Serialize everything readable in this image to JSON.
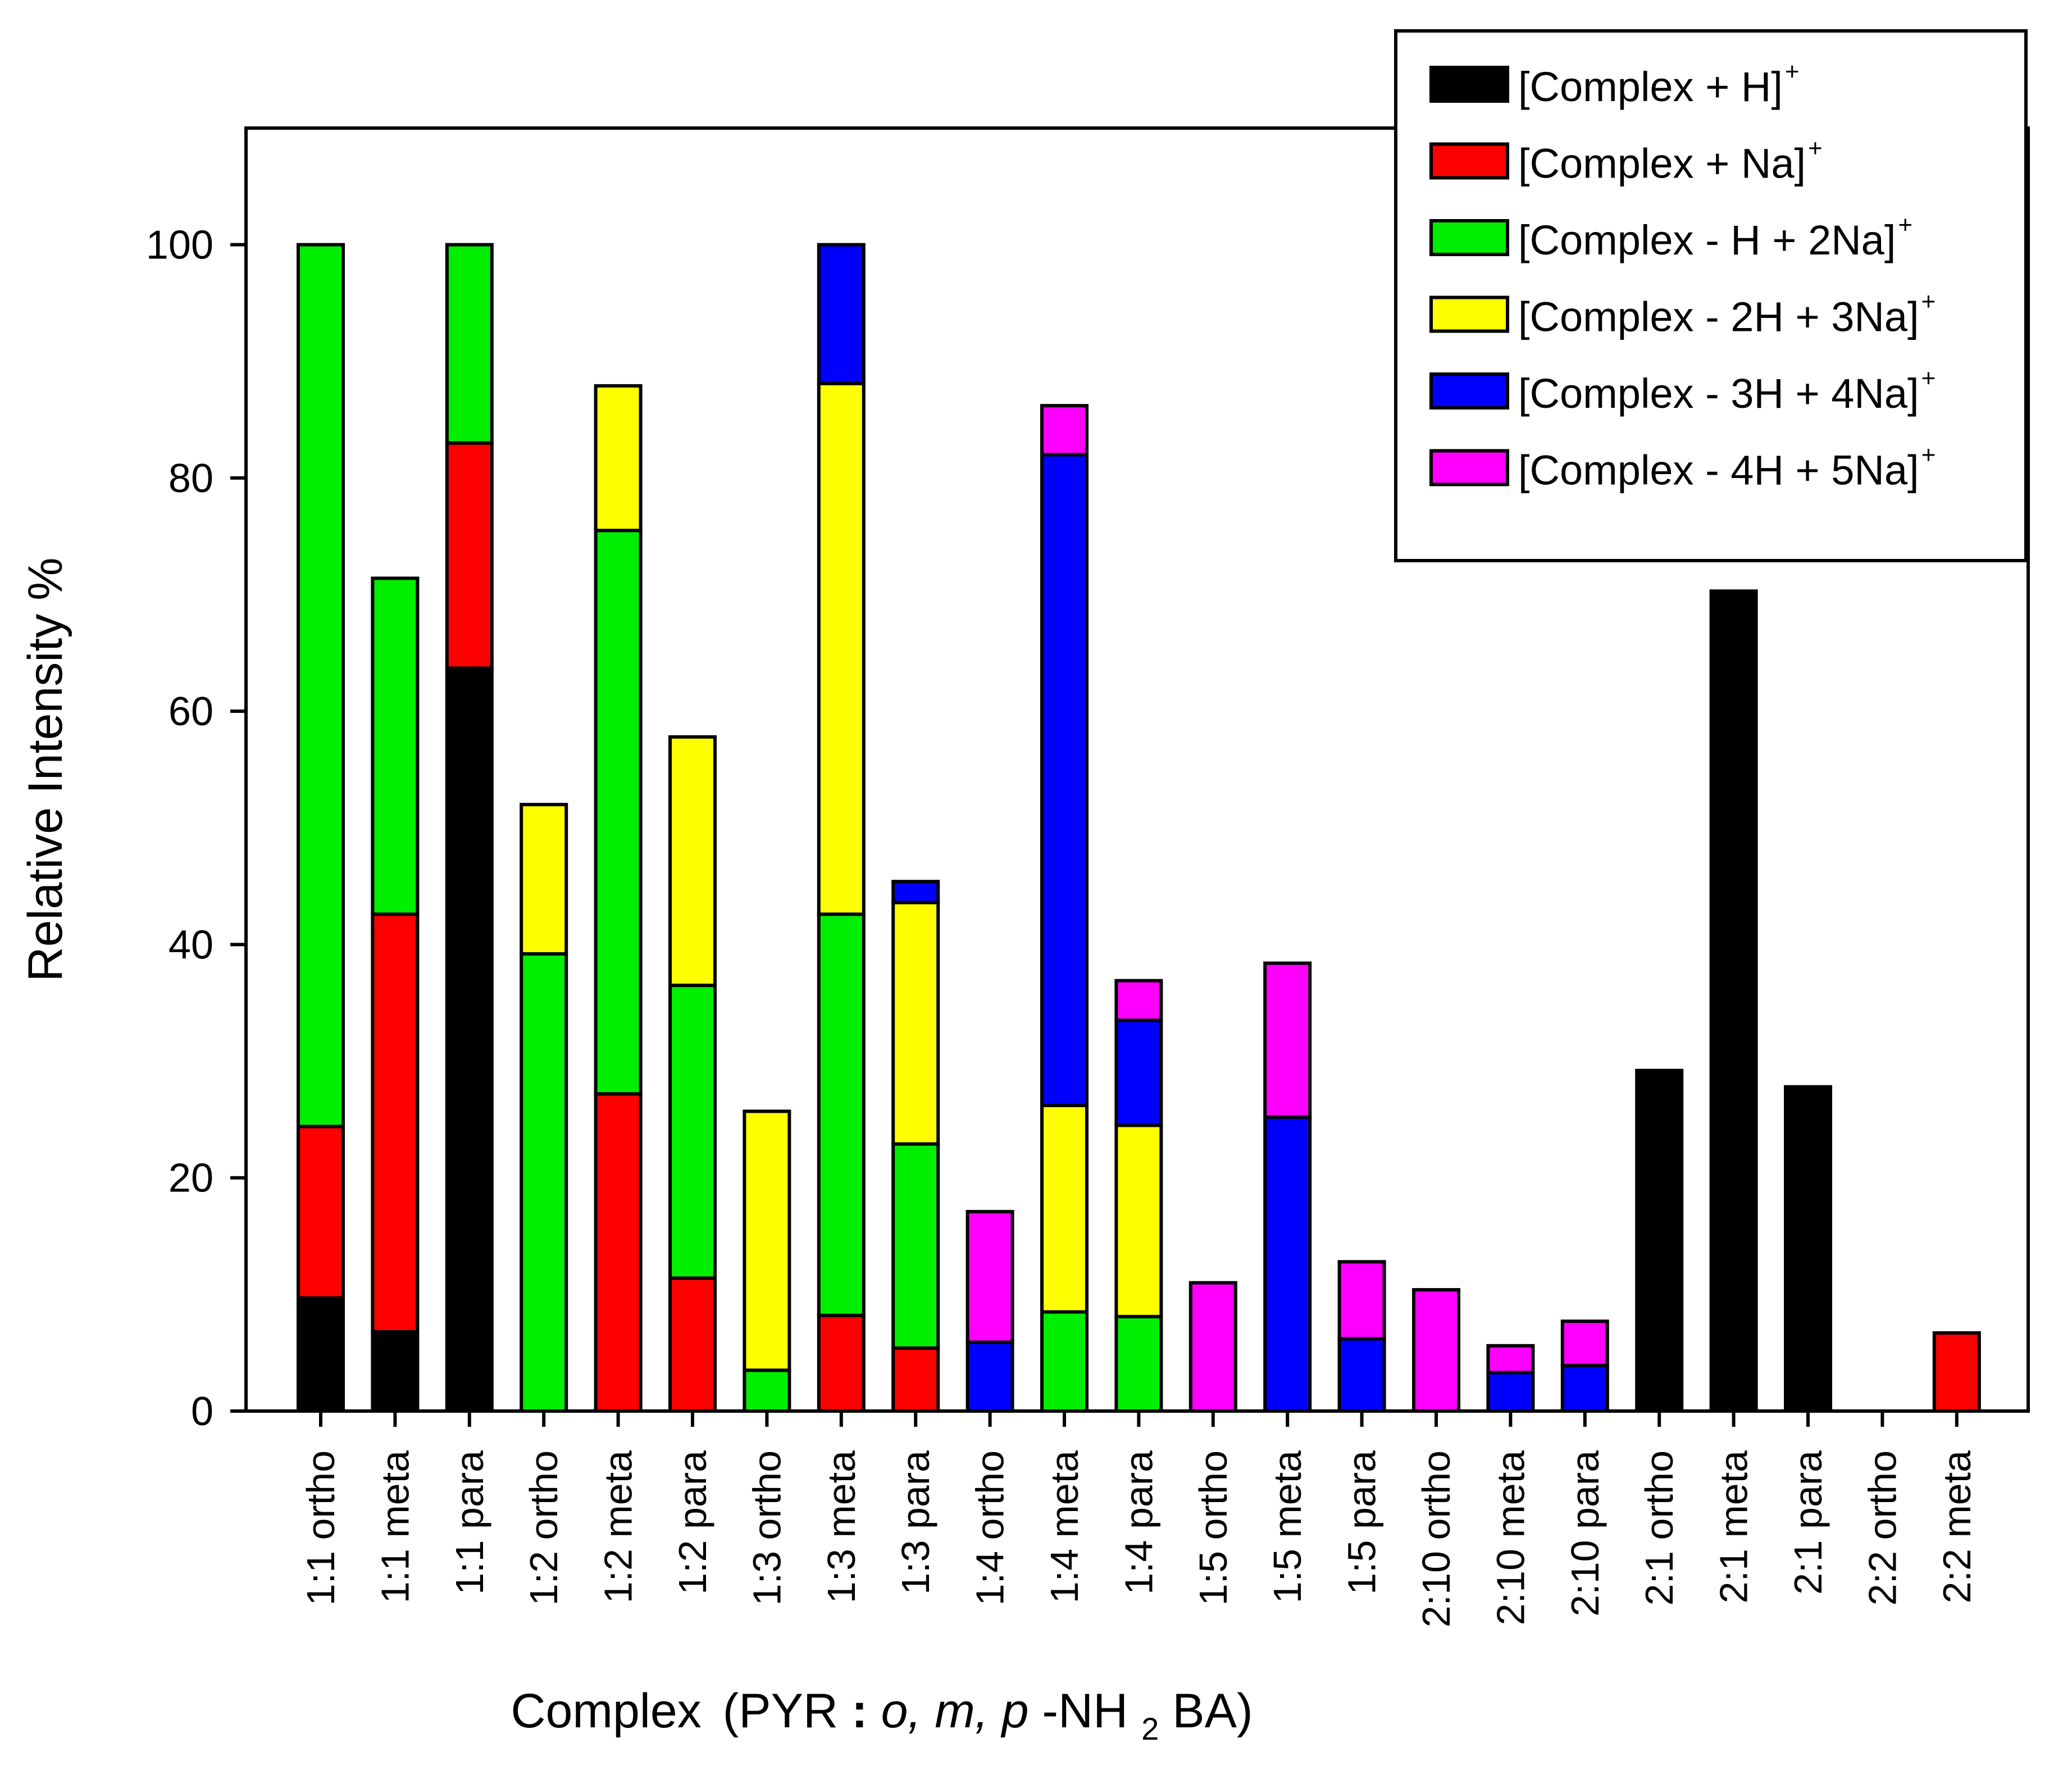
{
  "chart_data": {
    "type": "bar",
    "stacked": true,
    "ylabel": "Relative Intensity %",
    "xlabel": {
      "main": "Complex",
      "open": "(PYR",
      "colon": " : ",
      "o": "o,",
      "m": " m,",
      "p": " p",
      "rest": "-NH",
      "sub": "2",
      "end": "BA)"
    },
    "ylim": [
      0,
      110
    ],
    "yticks": [
      0,
      20,
      40,
      60,
      80,
      100
    ],
    "grid": false,
    "legend_position": "top-right",
    "categories": [
      "1:1 ortho",
      "1:1 meta",
      "1:1 para",
      "1:2 ortho",
      "1:2 meta",
      "1:2 para",
      "1:3 ortho",
      "1:3 meta",
      "1:3 para",
      "1:4 ortho",
      "1:4 meta",
      "1:4 para",
      "1:5 ortho",
      "1:5 meta",
      "1:5 para",
      "2:10 ortho",
      "2:10 meta",
      "2:10 para",
      "2:1 ortho",
      "2:1 meta",
      "2:1 para",
      "2:2 ortho",
      "2:2 meta"
    ],
    "series": [
      {
        "name": "[Complex + H]",
        "sup": "+",
        "color": "#000000",
        "values": [
          9.7,
          6.8,
          63.7,
          0,
          0,
          0,
          0,
          0,
          0,
          0,
          0,
          0,
          0,
          0,
          0,
          0,
          0,
          0,
          29.2,
          70.3,
          27.8,
          0,
          0
        ]
      },
      {
        "name": "[Complex + Na]",
        "sup": "+",
        "color": "#ff0000",
        "values": [
          14.7,
          35.8,
          19.3,
          0,
          27.2,
          11.4,
          0,
          8.2,
          5.4,
          0,
          0,
          0,
          0,
          0,
          0,
          0,
          0,
          0,
          0,
          0,
          0,
          0,
          6.7
        ]
      },
      {
        "name": "[Complex - H + 2Na]",
        "sup": "+",
        "color": "#00ee00",
        "values": [
          75.6,
          28.8,
          17.0,
          39.2,
          48.3,
          25.1,
          3.5,
          34.4,
          17.5,
          0,
          8.5,
          8.1,
          0,
          0,
          0,
          0,
          0,
          0,
          0,
          0,
          0,
          0,
          0
        ]
      },
      {
        "name": "[Complex - 2H + 3Na]",
        "sup": "+",
        "color": "#ffff00",
        "values": [
          0,
          0,
          0,
          12.8,
          12.4,
          21.3,
          22.2,
          45.5,
          20.7,
          0,
          17.7,
          16.4,
          0,
          0,
          0,
          0,
          0,
          0,
          0,
          0,
          0,
          0,
          0
        ]
      },
      {
        "name": "[Complex - 3H + 4Na]",
        "sup": "+",
        "color": "#0000ff",
        "values": [
          0,
          0,
          0,
          0,
          0,
          0,
          0,
          11.9,
          1.8,
          5.9,
          55.8,
          9.0,
          0,
          25.2,
          6.2,
          0,
          3.3,
          3.9,
          0,
          0,
          0,
          0,
          0
        ]
      },
      {
        "name": "[Complex - 4H + 5Na]",
        "sup": "+",
        "color": "#ff00ff",
        "values": [
          0,
          0,
          0,
          0,
          0,
          0,
          0,
          0,
          0,
          11.2,
          4.2,
          3.4,
          11.0,
          13.2,
          6.6,
          10.4,
          2.3,
          3.8,
          0,
          0,
          0,
          0,
          0
        ]
      }
    ]
  }
}
